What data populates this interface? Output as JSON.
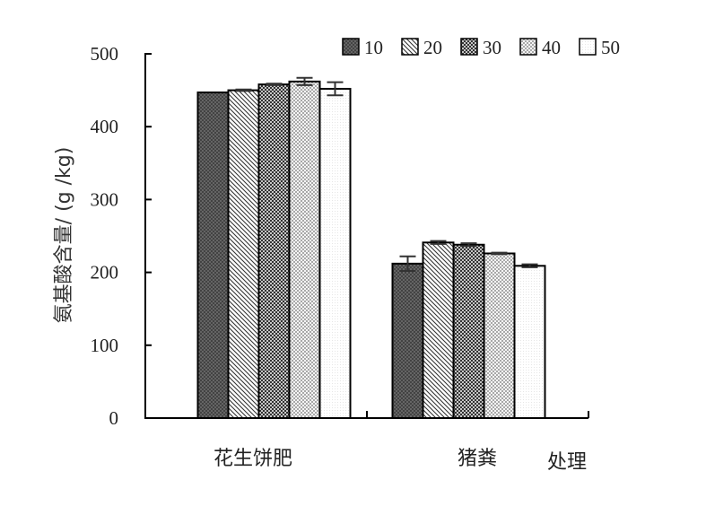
{
  "chart_data": {
    "type": "bar",
    "ylabel": "氨基酸含量/ (g /kg)",
    "xlabel": "处理",
    "categories": [
      "花生饼肥",
      "猪粪"
    ],
    "ylim": [
      0,
      500
    ],
    "yticks": [
      0,
      100,
      200,
      300,
      400,
      500
    ],
    "legend_position": "top-right",
    "series": [
      {
        "name": "10",
        "values": [
          447,
          212
        ],
        "errors": [
          0,
          10
        ]
      },
      {
        "name": "20",
        "values": [
          450,
          241
        ],
        "errors": [
          1,
          2
        ]
      },
      {
        "name": "30",
        "values": [
          458,
          238
        ],
        "errors": [
          1,
          2
        ]
      },
      {
        "name": "40",
        "values": [
          462,
          226
        ],
        "errors": [
          5,
          1
        ]
      },
      {
        "name": "50",
        "values": [
          452,
          209
        ],
        "errors": [
          9,
          2
        ]
      }
    ]
  }
}
